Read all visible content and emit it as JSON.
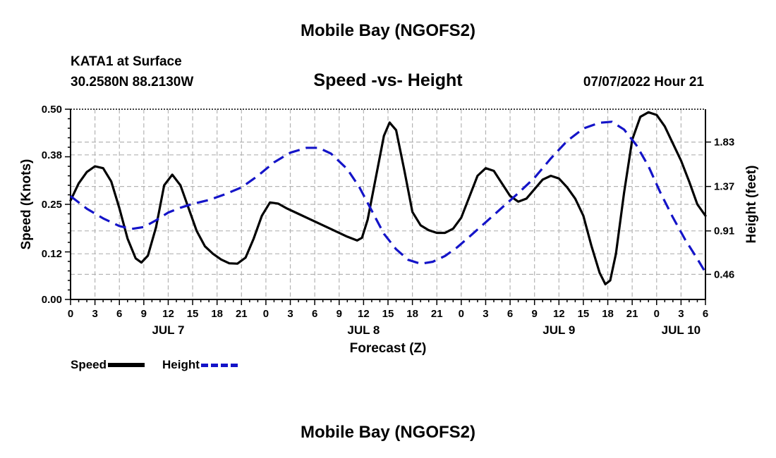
{
  "header": {
    "title": "Mobile Bay (NGOFS2)",
    "station": "KATA1 at Surface",
    "coordinates": "30.2580N  88.2130W",
    "subtitle": "Speed -vs- Height",
    "datestamp": "07/07/2022 Hour 21"
  },
  "footer": {
    "title": "Mobile Bay (NGOFS2)"
  },
  "chart_data": {
    "type": "line",
    "title": "Speed -vs- Height",
    "xlabel": "Forecast (Z)",
    "ylabel": "Speed (Knots)",
    "y2label": "Height (feet)",
    "xlim": [
      0,
      78
    ],
    "ylim": [
      0,
      0.5
    ],
    "y2lim": [
      0.2,
      2.17
    ],
    "x_ticks": [
      0,
      3,
      6,
      9,
      12,
      15,
      18,
      21,
      24,
      27,
      30,
      33,
      36,
      39,
      42,
      45,
      48,
      51,
      54,
      57,
      60,
      63,
      66,
      69,
      72,
      75,
      78
    ],
    "x_tick_labels": [
      "0",
      "3",
      "6",
      "9",
      "12",
      "15",
      "18",
      "21",
      "0",
      "3",
      "6",
      "9",
      "12",
      "15",
      "18",
      "21",
      "0",
      "3",
      "6",
      "9",
      "12",
      "15",
      "18",
      "21",
      "0",
      "3",
      "6"
    ],
    "date_labels": [
      {
        "x": 12,
        "label": "JUL 7"
      },
      {
        "x": 36,
        "label": "JUL 8"
      },
      {
        "x": 60,
        "label": "JUL 9"
      },
      {
        "x": 75,
        "label": "JUL 10"
      }
    ],
    "y_ticks": [
      0.0,
      0.12,
      0.25,
      0.38,
      0.5
    ],
    "y_tick_labels": [
      "0.00",
      "0.12",
      "0.25",
      "0.38",
      "0.50"
    ],
    "y2_ticks": [
      0.46,
      0.91,
      1.37,
      1.83
    ],
    "y2_tick_labels": [
      "0.46",
      "0.91",
      "1.37",
      "1.83"
    ],
    "grid": true,
    "series": [
      {
        "name": "Speed",
        "axis": "left",
        "color": "#000000",
        "dash": "solid",
        "points": [
          [
            0,
            0.26
          ],
          [
            1,
            0.305
          ],
          [
            2,
            0.335
          ],
          [
            3,
            0.35
          ],
          [
            4,
            0.345
          ],
          [
            5,
            0.31
          ],
          [
            6,
            0.24
          ],
          [
            7,
            0.16
          ],
          [
            8,
            0.108
          ],
          [
            8.7,
            0.097
          ],
          [
            9.5,
            0.115
          ],
          [
            10.5,
            0.19
          ],
          [
            11.5,
            0.3
          ],
          [
            12.5,
            0.328
          ],
          [
            13.5,
            0.3
          ],
          [
            14.5,
            0.24
          ],
          [
            15.5,
            0.18
          ],
          [
            16.5,
            0.14
          ],
          [
            17.5,
            0.12
          ],
          [
            18.5,
            0.105
          ],
          [
            19.5,
            0.095
          ],
          [
            20.5,
            0.094
          ],
          [
            21.5,
            0.11
          ],
          [
            22.5,
            0.16
          ],
          [
            23.5,
            0.22
          ],
          [
            24.5,
            0.255
          ],
          [
            25.5,
            0.252
          ],
          [
            26.5,
            0.24
          ],
          [
            28,
            0.225
          ],
          [
            30,
            0.205
          ],
          [
            32,
            0.185
          ],
          [
            34,
            0.165
          ],
          [
            35.2,
            0.155
          ],
          [
            35.8,
            0.162
          ],
          [
            36.5,
            0.21
          ],
          [
            37.5,
            0.32
          ],
          [
            38.5,
            0.43
          ],
          [
            39.2,
            0.465
          ],
          [
            40,
            0.445
          ],
          [
            41,
            0.34
          ],
          [
            42,
            0.23
          ],
          [
            43,
            0.195
          ],
          [
            44,
            0.182
          ],
          [
            45,
            0.175
          ],
          [
            46,
            0.175
          ],
          [
            47,
            0.186
          ],
          [
            48,
            0.215
          ],
          [
            49,
            0.27
          ],
          [
            50,
            0.325
          ],
          [
            51,
            0.345
          ],
          [
            52,
            0.338
          ],
          [
            53,
            0.305
          ],
          [
            54,
            0.272
          ],
          [
            55,
            0.257
          ],
          [
            56,
            0.265
          ],
          [
            57,
            0.29
          ],
          [
            58,
            0.315
          ],
          [
            59,
            0.325
          ],
          [
            60,
            0.318
          ],
          [
            61,
            0.295
          ],
          [
            62,
            0.265
          ],
          [
            63,
            0.22
          ],
          [
            64,
            0.14
          ],
          [
            65,
            0.07
          ],
          [
            65.7,
            0.04
          ],
          [
            66.3,
            0.05
          ],
          [
            67,
            0.12
          ],
          [
            68,
            0.28
          ],
          [
            69,
            0.42
          ],
          [
            70,
            0.48
          ],
          [
            71,
            0.492
          ],
          [
            72,
            0.485
          ],
          [
            73,
            0.455
          ],
          [
            74,
            0.41
          ],
          [
            75,
            0.365
          ],
          [
            76,
            0.31
          ],
          [
            77,
            0.25
          ],
          [
            78,
            0.22
          ]
        ]
      },
      {
        "name": "Height",
        "axis": "right",
        "color": "#1414c8",
        "dash": "dashed",
        "points": [
          [
            0,
            1.27
          ],
          [
            2,
            1.14
          ],
          [
            4,
            1.04
          ],
          [
            6,
            0.96
          ],
          [
            7.5,
            0.93
          ],
          [
            9,
            0.95
          ],
          [
            10.5,
            1.02
          ],
          [
            12,
            1.1
          ],
          [
            13.5,
            1.15
          ],
          [
            15,
            1.19
          ],
          [
            17,
            1.23
          ],
          [
            19,
            1.29
          ],
          [
            21,
            1.36
          ],
          [
            23,
            1.48
          ],
          [
            25,
            1.62
          ],
          [
            27,
            1.72
          ],
          [
            29,
            1.77
          ],
          [
            30.5,
            1.77
          ],
          [
            32,
            1.71
          ],
          [
            34,
            1.55
          ],
          [
            35.5,
            1.36
          ],
          [
            37,
            1.12
          ],
          [
            38.5,
            0.88
          ],
          [
            40,
            0.72
          ],
          [
            41.5,
            0.61
          ],
          [
            43,
            0.57
          ],
          [
            44.5,
            0.59
          ],
          [
            46,
            0.65
          ],
          [
            47.5,
            0.74
          ],
          [
            49,
            0.85
          ],
          [
            51,
            1.0
          ],
          [
            53,
            1.15
          ],
          [
            55,
            1.3
          ],
          [
            57,
            1.46
          ],
          [
            59,
            1.66
          ],
          [
            61,
            1.84
          ],
          [
            63,
            1.97
          ],
          [
            65,
            2.03
          ],
          [
            66.5,
            2.04
          ],
          [
            68,
            1.96
          ],
          [
            69.5,
            1.8
          ],
          [
            71,
            1.58
          ],
          [
            72.5,
            1.3
          ],
          [
            74,
            1.05
          ],
          [
            75.5,
            0.82
          ],
          [
            77,
            0.62
          ],
          [
            78,
            0.48
          ]
        ]
      }
    ],
    "legend": [
      {
        "label": "Speed",
        "color": "#000000",
        "dash": "solid"
      },
      {
        "label": "Height",
        "color": "#1414c8",
        "dash": "dashed"
      }
    ]
  }
}
